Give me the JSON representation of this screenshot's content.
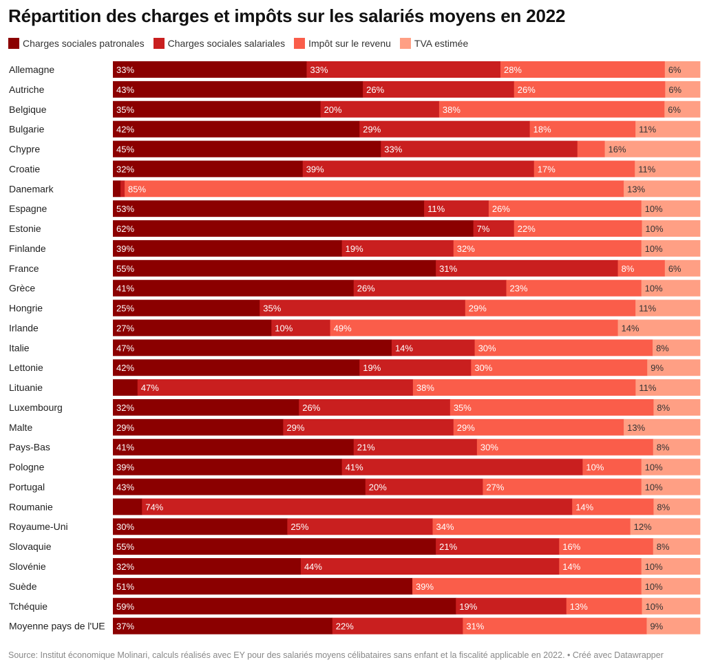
{
  "title": "Répartition des charges et impôts sur les salariés moyens en 2022",
  "source": "Source: Institut économique Molinari, calculs réalisés avec EY pour des salariés moyens célibataires sans enfant et la fiscalité applicable en 2022. • Créé avec Datawrapper",
  "chart_data": {
    "type": "bar",
    "orientation": "horizontal",
    "stacked": true,
    "title": "Répartition des charges et impôts sur les salariés moyens en 2022",
    "legend_position": "top-left",
    "unit": "%",
    "categories": [
      "Allemagne",
      "Autriche",
      "Belgique",
      "Bulgarie",
      "Chypre",
      "Croatie",
      "Danemark",
      "Espagne",
      "Estonie",
      "Finlande",
      "France",
      "Grèce",
      "Hongrie",
      "Irlande",
      "Italie",
      "Lettonie",
      "Lituanie",
      "Luxembourg",
      "Malte",
      "Pays-Bas",
      "Pologne",
      "Portugal",
      "Roumanie",
      "Royaume-Uni",
      "Slovaquie",
      "Slovénie",
      "Suède",
      "Tchéquie",
      "Moyenne pays de l'UE"
    ],
    "series": [
      {
        "name": "Charges sociales patronales",
        "color": "#8b0000",
        "values": [
          33,
          43,
          35,
          42,
          45,
          32,
          1.3,
          53,
          62,
          39,
          55,
          41,
          25,
          27,
          47,
          42,
          4.2,
          32,
          29,
          41,
          39,
          43,
          5,
          30,
          55,
          32,
          51,
          59,
          37
        ],
        "labels": [
          "33%",
          "43%",
          "35%",
          "42%",
          "45%",
          "32%",
          "",
          "53%",
          "62%",
          "39%",
          "55%",
          "41%",
          "25%",
          "27%",
          "47%",
          "42%",
          "",
          "32%",
          "29%",
          "41%",
          "39%",
          "43%",
          "",
          "30%",
          "55%",
          "32%",
          "51%",
          "59%",
          "37%"
        ]
      },
      {
        "name": "Charges sociales salariales",
        "color": "#c91f1f",
        "values": [
          33,
          26,
          20,
          29,
          33,
          39,
          0.7,
          11,
          7,
          19,
          31,
          26,
          35,
          10,
          14,
          19,
          47,
          26,
          29,
          21,
          41,
          20,
          74,
          25,
          21,
          44,
          0,
          19,
          22
        ],
        "labels": [
          "33%",
          "26%",
          "20%",
          "29%",
          "33%",
          "39%",
          "",
          "11%",
          "7%",
          "19%",
          "31%",
          "26%",
          "35%",
          "10%",
          "14%",
          "19%",
          "47%",
          "26%",
          "29%",
          "21%",
          "41%",
          "20%",
          "74%",
          "25%",
          "21%",
          "44%",
          "",
          "19%",
          "22%"
        ]
      },
      {
        "name": "Impôt sur le revenu",
        "color": "#fa5d4a",
        "values": [
          28,
          26,
          38,
          18,
          4.6,
          17,
          85,
          26,
          22,
          32,
          8,
          23,
          29,
          49,
          30,
          30,
          38,
          35,
          29,
          30,
          10,
          27,
          14,
          34,
          16,
          14,
          39,
          13,
          31
        ],
        "labels": [
          "28%",
          "26%",
          "38%",
          "18%",
          "",
          "17%",
          "85%",
          "26%",
          "22%",
          "32%",
          "8%",
          "23%",
          "29%",
          "49%",
          "30%",
          "30%",
          "38%",
          "35%",
          "29%",
          "30%",
          "10%",
          "27%",
          "14%",
          "34%",
          "16%",
          "14%",
          "39%",
          "13%",
          "31%"
        ]
      },
      {
        "name": "TVA estimée",
        "color": "#ff9f84",
        "values": [
          6,
          6,
          6,
          11,
          16,
          11,
          13,
          10,
          10,
          10,
          6,
          10,
          11,
          14,
          8,
          9,
          11,
          8,
          13,
          8,
          10,
          10,
          8,
          12,
          8,
          10,
          10,
          10,
          9
        ],
        "labels": [
          "6%",
          "6%",
          "6%",
          "11%",
          "16%",
          "11%",
          "13%",
          "10%",
          "10%",
          "10%",
          "6%",
          "10%",
          "11%",
          "14%",
          "8%",
          "9%",
          "11%",
          "8%",
          "13%",
          "8%",
          "10%",
          "10%",
          "8%",
          "12%",
          "8%",
          "10%",
          "10%",
          "10%",
          "9%"
        ]
      }
    ]
  }
}
